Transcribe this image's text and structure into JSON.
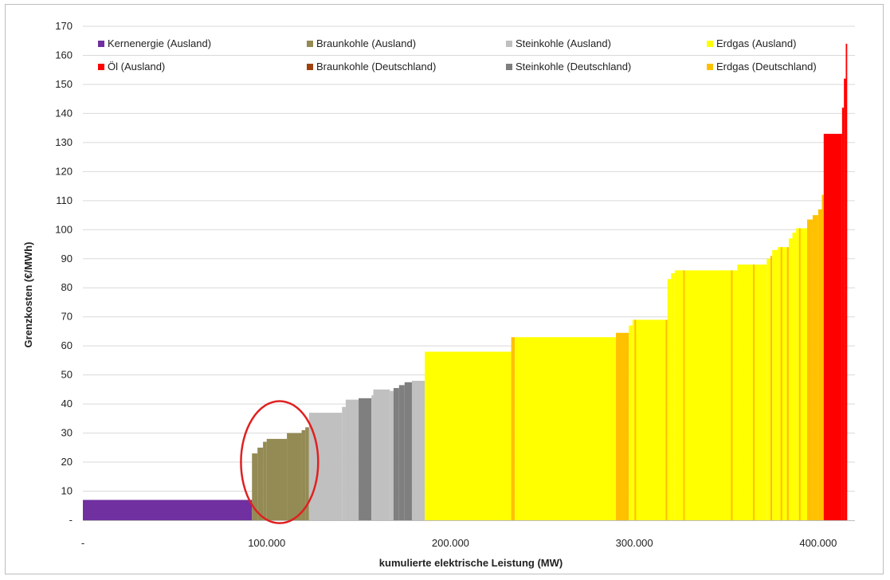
{
  "chart_data": {
    "type": "bar",
    "subtype": "merit-order step chart",
    "xlabel": "kumulierte elektrische Leistung (MW)",
    "ylabel": "Grenzkosten (€/MWh)",
    "xlim": [
      0,
      420000
    ],
    "ylim": [
      0,
      170
    ],
    "x_ticks": [
      0,
      100000,
      200000,
      300000,
      400000
    ],
    "x_tick_labels": [
      "-",
      "100.000",
      "200.000",
      "300.000",
      "400.000"
    ],
    "y_ticks": [
      0,
      10,
      20,
      30,
      40,
      50,
      60,
      70,
      80,
      90,
      100,
      110,
      120,
      130,
      140,
      150,
      160,
      170
    ],
    "y_tick_labels": [
      "-",
      "10",
      "20",
      "30",
      "40",
      "50",
      "60",
      "70",
      "80",
      "90",
      "100",
      "110",
      "120",
      "130",
      "140",
      "150",
      "160",
      "170"
    ],
    "grid": "horizontal",
    "legend_position": "top",
    "legend": [
      {
        "name": "Kernenergie (Ausland)",
        "color": "#7030a0"
      },
      {
        "name": "Braunkohle (Ausland)",
        "color": "#948a54"
      },
      {
        "name": "Steinkohle (Ausland)",
        "color": "#c0c0c0"
      },
      {
        "name": "Erdgas (Ausland)",
        "color": "#ffff00"
      },
      {
        "name": "Öl (Ausland)",
        "color": "#ff0000"
      },
      {
        "name": "Braunkohle (Deutschland)",
        "color": "#a0410d"
      },
      {
        "name": "Steinkohle (Deutschland)",
        "color": "#7f7f7f"
      },
      {
        "name": "Erdgas (Deutschland)",
        "color": "#ffc000"
      }
    ],
    "segments": [
      {
        "fuel": "Kernenergie (Ausland)",
        "x0": 0,
        "x1": 92000,
        "y": 7
      },
      {
        "fuel": "Braunkohle (Ausland)",
        "x0": 92000,
        "x1": 95000,
        "y": 23
      },
      {
        "fuel": "Braunkohle (Ausland)",
        "x0": 95000,
        "x1": 98000,
        "y": 25
      },
      {
        "fuel": "Braunkohle (Ausland)",
        "x0": 98000,
        "x1": 100000,
        "y": 27
      },
      {
        "fuel": "Braunkohle (Ausland)",
        "x0": 100000,
        "x1": 111000,
        "y": 28
      },
      {
        "fuel": "Braunkohle (Ausland)",
        "x0": 111000,
        "x1": 119000,
        "y": 30
      },
      {
        "fuel": "Braunkohle (Ausland)",
        "x0": 119000,
        "x1": 121000,
        "y": 31
      },
      {
        "fuel": "Braunkohle (Ausland)",
        "x0": 121000,
        "x1": 123000,
        "y": 32
      },
      {
        "fuel": "Steinkohle (Ausland)",
        "x0": 123000,
        "x1": 141000,
        "y": 37
      },
      {
        "fuel": "Steinkohle (Ausland)",
        "x0": 141000,
        "x1": 143000,
        "y": 39
      },
      {
        "fuel": "Steinkohle (Ausland)",
        "x0": 143000,
        "x1": 150000,
        "y": 41.5
      },
      {
        "fuel": "Steinkohle (Deutschland)",
        "x0": 150000,
        "x1": 157000,
        "y": 42
      },
      {
        "fuel": "Steinkohle (Ausland)",
        "x0": 157000,
        "x1": 158000,
        "y": 43
      },
      {
        "fuel": "Steinkohle (Ausland)",
        "x0": 158000,
        "x1": 167000,
        "y": 45
      },
      {
        "fuel": "Steinkohle (Ausland)",
        "x0": 167000,
        "x1": 169000,
        "y": 44.5
      },
      {
        "fuel": "Steinkohle (Deutschland)",
        "x0": 169000,
        "x1": 172000,
        "y": 45.5
      },
      {
        "fuel": "Steinkohle (Deutschland)",
        "x0": 172000,
        "x1": 175000,
        "y": 46.5
      },
      {
        "fuel": "Steinkohle (Deutschland)",
        "x0": 175000,
        "x1": 179000,
        "y": 47.5
      },
      {
        "fuel": "Steinkohle (Ausland)",
        "x0": 179000,
        "x1": 186000,
        "y": 48
      },
      {
        "fuel": "Erdgas (Ausland)",
        "x0": 186000,
        "x1": 233000,
        "y": 58
      },
      {
        "fuel": "Erdgas (Deutschland)",
        "x0": 233000,
        "x1": 235000,
        "y": 63
      },
      {
        "fuel": "Erdgas (Ausland)",
        "x0": 235000,
        "x1": 290000,
        "y": 63
      },
      {
        "fuel": "Erdgas (Deutschland)",
        "x0": 290000,
        "x1": 297000,
        "y": 64.5
      },
      {
        "fuel": "Erdgas (Ausland)",
        "x0": 297000,
        "x1": 299000,
        "y": 67
      },
      {
        "fuel": "Erdgas (Ausland)",
        "x0": 299000,
        "x1": 317000,
        "y": 69
      },
      {
        "fuel": "Erdgas (Deutschland)",
        "x0": 317000,
        "x1": 318000,
        "y": 69
      },
      {
        "fuel": "Erdgas (Ausland)",
        "x0": 318000,
        "x1": 320000,
        "y": 83
      },
      {
        "fuel": "Erdgas (Ausland)",
        "x0": 320000,
        "x1": 322000,
        "y": 85
      },
      {
        "fuel": "Erdgas (Ausland)",
        "x0": 322000,
        "x1": 356000,
        "y": 86
      },
      {
        "fuel": "Erdgas (Ausland)",
        "x0": 356000,
        "x1": 372000,
        "y": 88
      },
      {
        "fuel": "Erdgas (Ausland)",
        "x0": 372000,
        "x1": 374000,
        "y": 90
      },
      {
        "fuel": "Erdgas (Deutschland)",
        "x0": 374000,
        "x1": 375000,
        "y": 91
      },
      {
        "fuel": "Erdgas (Ausland)",
        "x0": 375000,
        "x1": 378000,
        "y": 93
      },
      {
        "fuel": "Erdgas (Ausland)",
        "x0": 378000,
        "x1": 383000,
        "y": 94
      },
      {
        "fuel": "Erdgas (Deutschland)",
        "x0": 383000,
        "x1": 384000,
        "y": 94
      },
      {
        "fuel": "Erdgas (Ausland)",
        "x0": 384000,
        "x1": 386000,
        "y": 97
      },
      {
        "fuel": "Erdgas (Ausland)",
        "x0": 386000,
        "x1": 388000,
        "y": 99
      },
      {
        "fuel": "Erdgas (Ausland)",
        "x0": 388000,
        "x1": 394000,
        "y": 100.5
      },
      {
        "fuel": "Erdgas (Deutschland)",
        "x0": 394000,
        "x1": 397000,
        "y": 103.5
      },
      {
        "fuel": "Erdgas (Deutschland)",
        "x0": 397000,
        "x1": 400000,
        "y": 105
      },
      {
        "fuel": "Erdgas (Deutschland)",
        "x0": 400000,
        "x1": 402000,
        "y": 107
      },
      {
        "fuel": "Erdgas (Deutschland)",
        "x0": 402000,
        "x1": 403000,
        "y": 112
      },
      {
        "fuel": "Öl (Ausland)",
        "x0": 403000,
        "x1": 413000,
        "y": 133
      },
      {
        "fuel": "Öl (Ausland)",
        "x0": 413000,
        "x1": 414000,
        "y": 142
      },
      {
        "fuel": "Öl (Ausland)",
        "x0": 414000,
        "x1": 415000,
        "y": 152
      },
      {
        "fuel": "Öl (Ausland)",
        "x0": 415000,
        "x1": 415800,
        "y": 164
      }
    ],
    "thin_lines": [
      {
        "fuel": "Erdgas (Deutschland)",
        "x": 300500
      },
      {
        "fuel": "Erdgas (Deutschland)",
        "x": 327000
      },
      {
        "fuel": "Erdgas (Deutschland)",
        "x": 353000
      },
      {
        "fuel": "Erdgas (Deutschland)",
        "x": 365000
      },
      {
        "fuel": "Erdgas (Deutschland)",
        "x": 380000
      },
      {
        "fuel": "Erdgas (Deutschland)",
        "x": 390000
      }
    ],
    "annotation": {
      "shape": "ellipse",
      "color": "#e02020",
      "marks": "Braunkohle (Ausland)",
      "cx": 107000,
      "cy": 20,
      "rx": 21000,
      "ry": 21
    }
  }
}
